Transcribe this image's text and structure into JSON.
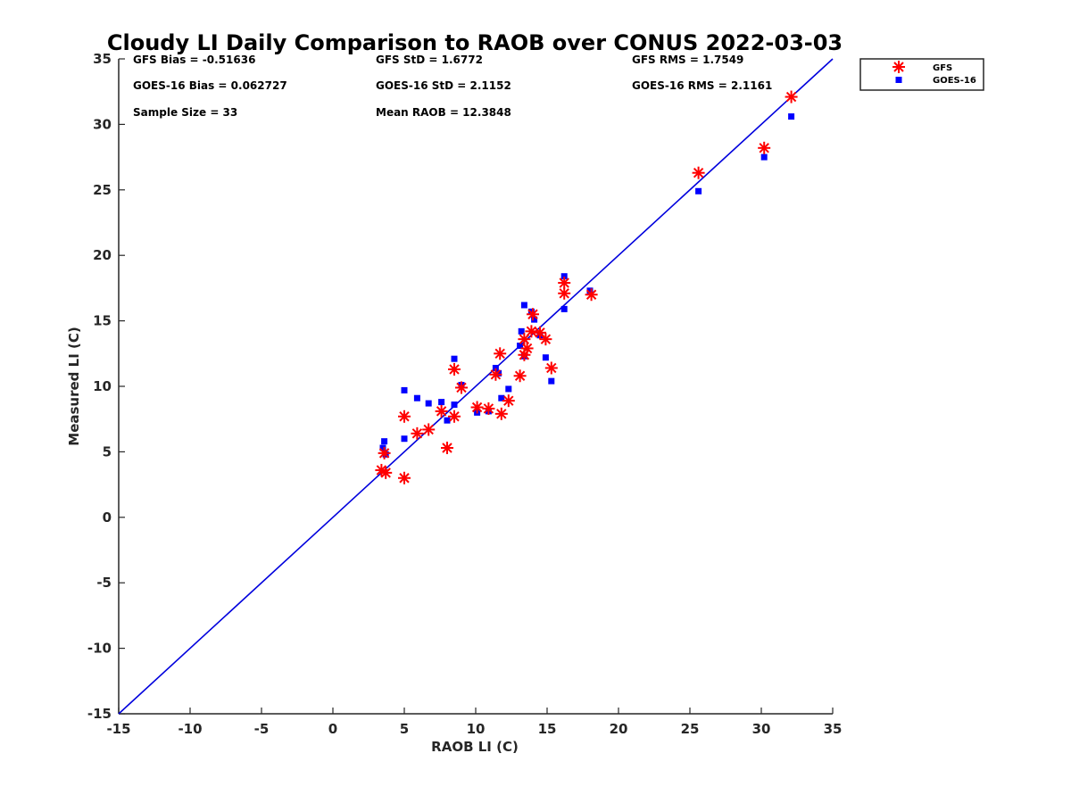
{
  "chart_data": {
    "type": "scatter",
    "title": "Cloudy LI Daily Comparison to RAOB over CONUS 2022-03-03",
    "xlabel": "RAOB LI (C)",
    "ylabel": "Measured LI (C)",
    "xlim": [
      -15,
      35
    ],
    "ylim": [
      -15,
      35
    ],
    "xticks": [
      -15,
      -10,
      -5,
      0,
      5,
      10,
      15,
      20,
      25,
      30,
      35
    ],
    "yticks": [
      -15,
      -10,
      -5,
      0,
      5,
      10,
      15,
      20,
      25,
      30,
      35
    ],
    "grid": false,
    "legend_position": "outside-top-right",
    "reference_line": {
      "type": "one-to-one",
      "color": "#0000dd"
    },
    "stats": [
      {
        "name": "gfs-bias",
        "text": "GFS Bias = -0.51636"
      },
      {
        "name": "gfs-std",
        "text": "GFS StD = 1.6772"
      },
      {
        "name": "gfs-rms",
        "text": "GFS RMS = 1.7549"
      },
      {
        "name": "goes-bias",
        "text": "GOES-16 Bias = 0.062727"
      },
      {
        "name": "goes-std",
        "text": "GOES-16 StD = 2.1152"
      },
      {
        "name": "goes-rms",
        "text": "GOES-16 RMS = 2.1161"
      },
      {
        "name": "sample-size",
        "text": "Sample Size = 33"
      },
      {
        "name": "mean-raob",
        "text": "Mean RAOB = 12.3848"
      }
    ],
    "series": [
      {
        "name": "GFS",
        "marker": "asterisk",
        "color": "#ff0000",
        "points": [
          [
            32.1,
            32.1
          ],
          [
            30.2,
            28.2
          ],
          [
            25.6,
            26.3
          ],
          [
            18.1,
            17.0
          ],
          [
            16.2,
            17.9
          ],
          [
            16.2,
            17.1
          ],
          [
            14.0,
            15.5
          ],
          [
            14.5,
            14.1
          ],
          [
            13.9,
            14.2
          ],
          [
            13.4,
            13.6
          ],
          [
            14.9,
            13.6
          ],
          [
            13.4,
            12.4
          ],
          [
            11.7,
            12.5
          ],
          [
            15.3,
            11.4
          ],
          [
            8.5,
            11.3
          ],
          [
            11.4,
            10.9
          ],
          [
            13.1,
            10.8
          ],
          [
            9.0,
            9.9
          ],
          [
            12.3,
            8.9
          ],
          [
            10.1,
            8.4
          ],
          [
            10.9,
            8.3
          ],
          [
            7.6,
            8.1
          ],
          [
            11.8,
            7.9
          ],
          [
            5.0,
            7.7
          ],
          [
            8.5,
            7.7
          ],
          [
            6.7,
            6.7
          ],
          [
            5.9,
            6.4
          ],
          [
            8.0,
            5.3
          ],
          [
            3.6,
            4.9
          ],
          [
            3.4,
            3.6
          ],
          [
            3.7,
            3.4
          ],
          [
            5.0,
            3.0
          ],
          [
            13.6,
            12.9
          ]
        ]
      },
      {
        "name": "GOES-16",
        "marker": "square",
        "color": "#0000ff",
        "points": [
          [
            32.1,
            30.6
          ],
          [
            30.2,
            27.5
          ],
          [
            25.6,
            24.9
          ],
          [
            18.0,
            17.3
          ],
          [
            16.2,
            18.4
          ],
          [
            16.2,
            15.9
          ],
          [
            13.4,
            16.2
          ],
          [
            13.9,
            15.7
          ],
          [
            14.1,
            15.1
          ],
          [
            13.2,
            14.2
          ],
          [
            14.5,
            13.9
          ],
          [
            13.1,
            13.1
          ],
          [
            13.4,
            12.3
          ],
          [
            14.9,
            12.2
          ],
          [
            8.5,
            12.1
          ],
          [
            11.4,
            11.4
          ],
          [
            11.6,
            11.0
          ],
          [
            15.3,
            10.4
          ],
          [
            9.0,
            10.1
          ],
          [
            12.3,
            9.8
          ],
          [
            5.0,
            9.7
          ],
          [
            5.9,
            9.1
          ],
          [
            11.8,
            9.1
          ],
          [
            7.6,
            8.8
          ],
          [
            6.7,
            8.7
          ],
          [
            8.5,
            8.6
          ],
          [
            10.1,
            8.0
          ],
          [
            10.9,
            8.1
          ],
          [
            8.0,
            7.4
          ],
          [
            5.0,
            6.0
          ],
          [
            3.6,
            5.8
          ],
          [
            3.5,
            5.3
          ],
          [
            3.7,
            4.8
          ]
        ]
      }
    ]
  }
}
